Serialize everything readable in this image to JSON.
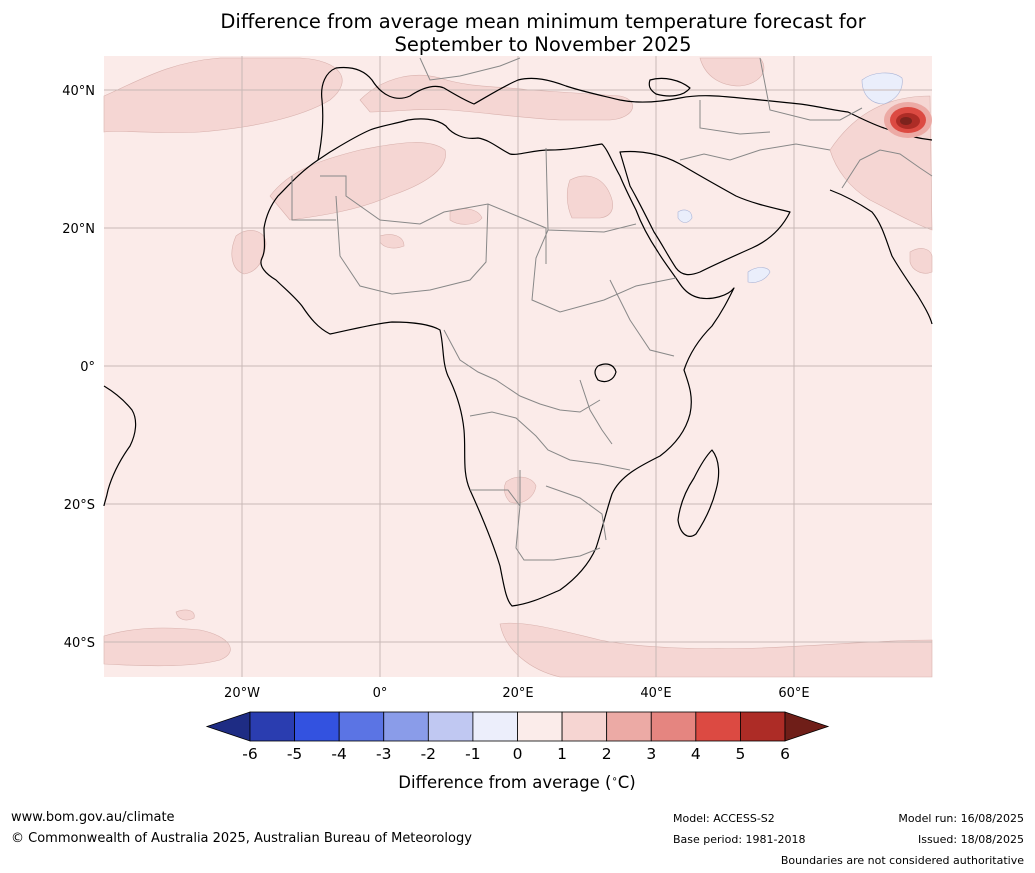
{
  "title_line1": "Difference from average mean minimum temperature forecast for",
  "title_line2": "September to November 2025",
  "lat_labels": [
    "40°N",
    "20°N",
    "0°",
    "20°S",
    "40°S"
  ],
  "lon_labels": [
    "20°W",
    "0°",
    "20°E",
    "40°E",
    "60°E"
  ],
  "colorbar": {
    "title": "Difference from average (",
    "title_unit": "∘",
    "title_end": "C)",
    "ticks": [
      "-6",
      "-5",
      "-4",
      "-3",
      "-2",
      "-1",
      "0",
      "1",
      "2",
      "3",
      "4",
      "5",
      "6"
    ],
    "colors": [
      "#1e2c84",
      "#2a3db0",
      "#3352e0",
      "#5b74e4",
      "#8a9ce9",
      "#c0c8f2",
      "#eceefb",
      "#fbecea",
      "#f6d5d2",
      "#ecaaa5",
      "#e58580",
      "#dc4a42",
      "#ad2c26",
      "#6f1e18"
    ]
  },
  "footer": {
    "website": "www.bom.gov.au/climate",
    "copyright": "© Commonwealth of Australia 2025, Australian Bureau of Meteorology",
    "model": "Model: ACCESS-S2",
    "base_period": "Base period: 1981-2018",
    "model_run": "Model run: 16/08/2025",
    "issued": "Issued: 18/08/2025",
    "disclaimer": "Boundaries are not considered authoritative"
  },
  "map": {
    "background_color": "#fbebe9",
    "warm_patch_color": "#f5d6d3",
    "cool_patch_color": "#eaeefb",
    "hotspot_colors": [
      "#ecaaa5",
      "#dc4a42",
      "#ad2c26"
    ],
    "coastline_color": "#000000",
    "border_color": "#888888",
    "grid_color": "#c8b8b6"
  }
}
